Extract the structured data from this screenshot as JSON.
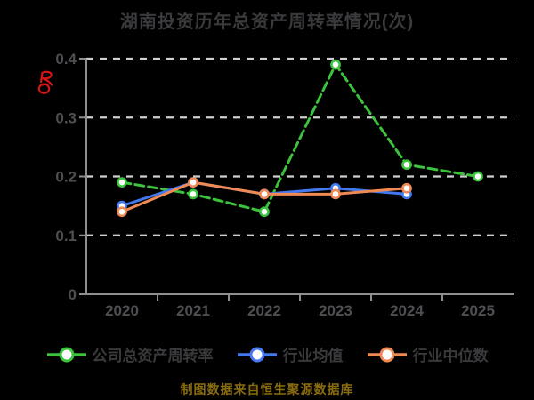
{
  "title": "湖南投资历年总资产周转率情况(次)",
  "caption": "制图数据来自恒生聚源数据库",
  "colors": {
    "background": "#000000",
    "grid": "#cfcfcf",
    "axis": "#8e8e8e",
    "tick_label": "#4f4f53",
    "title_text": "#3a3a3d",
    "legend_text": "#3a3a3d",
    "caption_text": "#8a6c10",
    "annotation_red": "#d81414",
    "marker_fill": "#ffffff"
  },
  "annotation": {
    "name": "red-scribble",
    "color": "#d81414"
  },
  "chart_data": {
    "type": "line",
    "categories": [
      "2020",
      "2021",
      "2022",
      "2023",
      "2024",
      "2025"
    ],
    "series": [
      {
        "key": "company-total-asset-turnover",
        "name": "公司总资产周转率",
        "color": "#3cc23c",
        "dashed": true,
        "values": [
          0.19,
          0.17,
          0.14,
          0.39,
          0.22,
          0.2
        ]
      },
      {
        "key": "industry-mean",
        "name": "行业均值",
        "color": "#4478ee",
        "dashed": false,
        "values": [
          0.15,
          0.19,
          0.17,
          0.18,
          0.17,
          null
        ]
      },
      {
        "key": "industry-median",
        "name": "行业中位数",
        "color": "#f08a55",
        "dashed": false,
        "values": [
          0.14,
          0.19,
          0.17,
          0.17,
          0.18,
          null
        ]
      }
    ],
    "title": "湖南投资历年总资产周转率情况(次)",
    "xlabel": "",
    "ylabel": "",
    "ylim": [
      0,
      0.4
    ],
    "yticks": [
      0,
      0.1,
      0.2,
      0.3,
      0.4
    ],
    "grid": "horizontal-dashed",
    "legend_position": "bottom"
  }
}
